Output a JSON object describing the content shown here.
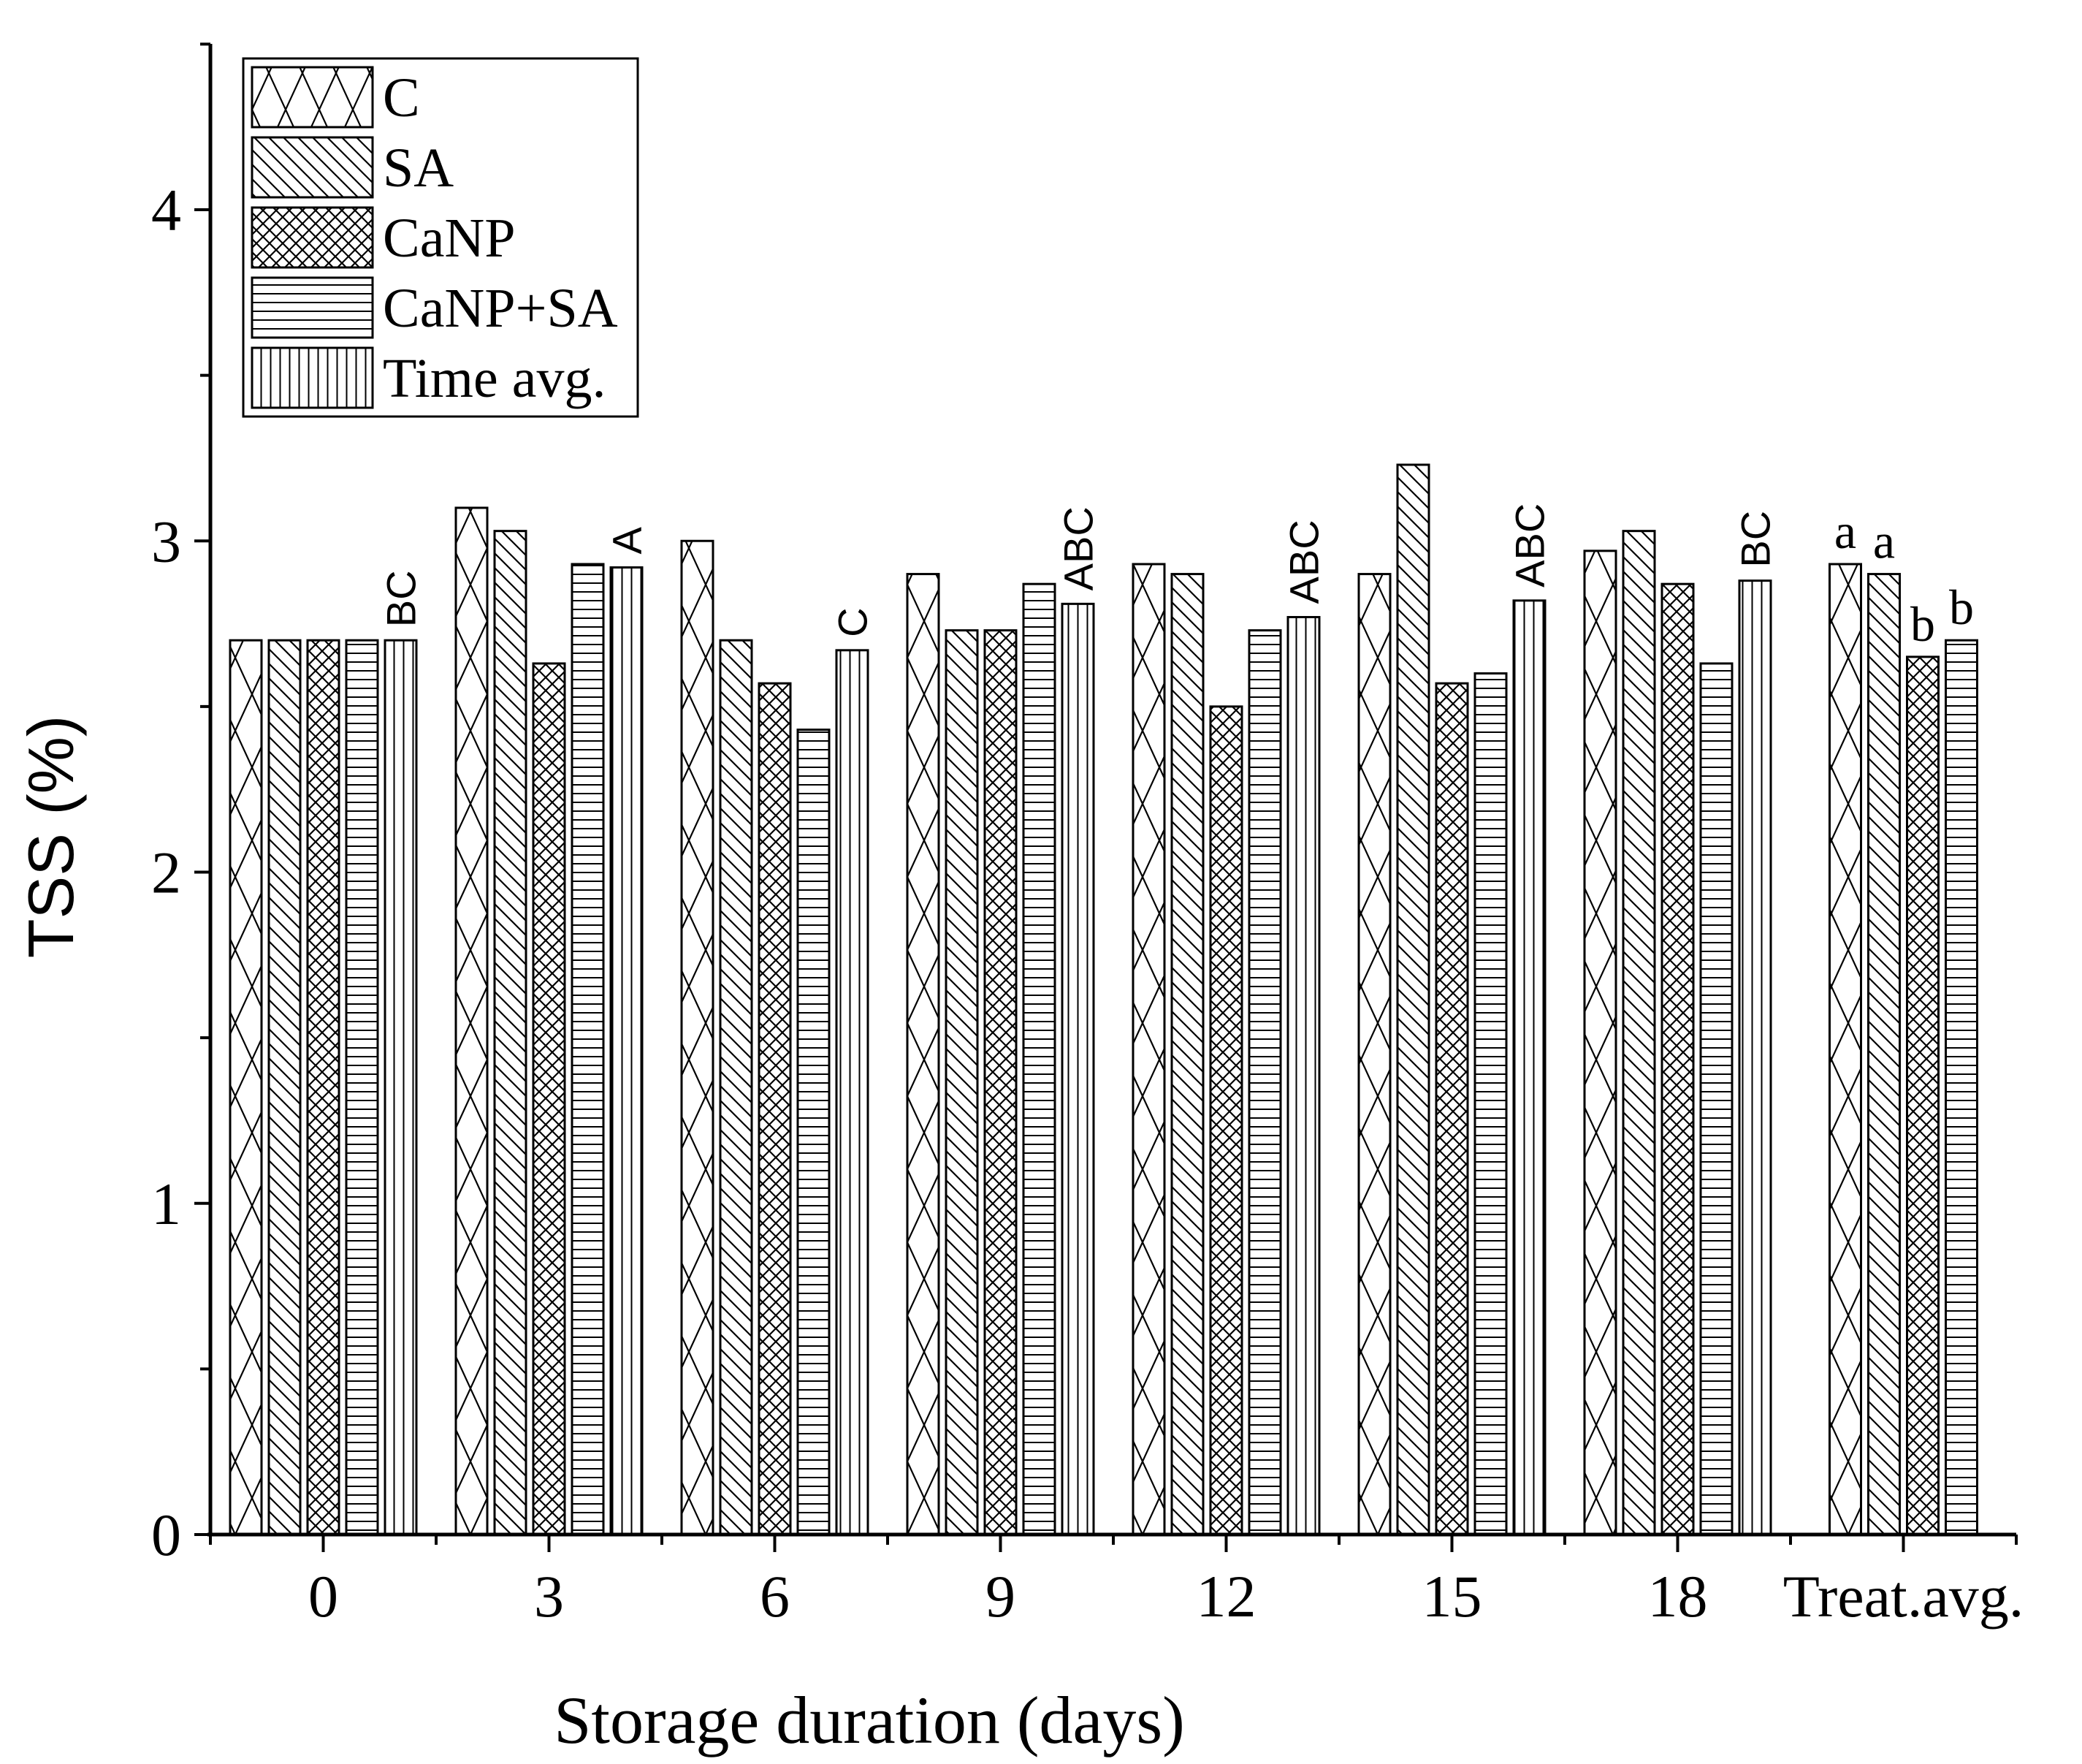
{
  "chart_data": {
    "type": "bar",
    "xlabel": "Storage duration (days)",
    "ylabel": "TSS (%)",
    "ylim": [
      0,
      4.5
    ],
    "yticks": [
      0,
      1,
      2,
      3,
      4
    ],
    "categories": [
      "0",
      "3",
      "6",
      "9",
      "12",
      "15",
      "18",
      "Treat.avg."
    ],
    "series": [
      {
        "name": "C",
        "pattern": "crosshatch",
        "values": [
          2.7,
          3.1,
          3.0,
          2.9,
          2.93,
          2.9,
          2.97,
          2.93
        ]
      },
      {
        "name": "SA",
        "pattern": "diagonal",
        "values": [
          2.7,
          3.03,
          2.7,
          2.73,
          2.9,
          3.23,
          3.03,
          2.9
        ]
      },
      {
        "name": "CaNP",
        "pattern": "dense-crosshatch",
        "values": [
          2.7,
          2.63,
          2.57,
          2.73,
          2.5,
          2.57,
          2.87,
          2.65
        ]
      },
      {
        "name": "CaNP+SA",
        "pattern": "horizontal",
        "values": [
          2.7,
          2.93,
          2.43,
          2.87,
          2.73,
          2.6,
          2.63,
          2.7
        ]
      },
      {
        "name": "Time avg.",
        "pattern": "vertical",
        "values": [
          2.7,
          2.92,
          2.67,
          2.81,
          2.77,
          2.82,
          2.88,
          null
        ]
      }
    ],
    "time_avg_labels": [
      "BC",
      "A",
      "C",
      "ABC",
      "ABC",
      "ABC",
      "BC"
    ],
    "treatment_avg_labels": [
      "a",
      "a",
      "b",
      "b"
    ],
    "legend": {
      "position": "top-left",
      "entries": [
        "C",
        "SA",
        "CaNP",
        "CaNP+SA",
        "Time avg."
      ]
    },
    "grid": false
  }
}
